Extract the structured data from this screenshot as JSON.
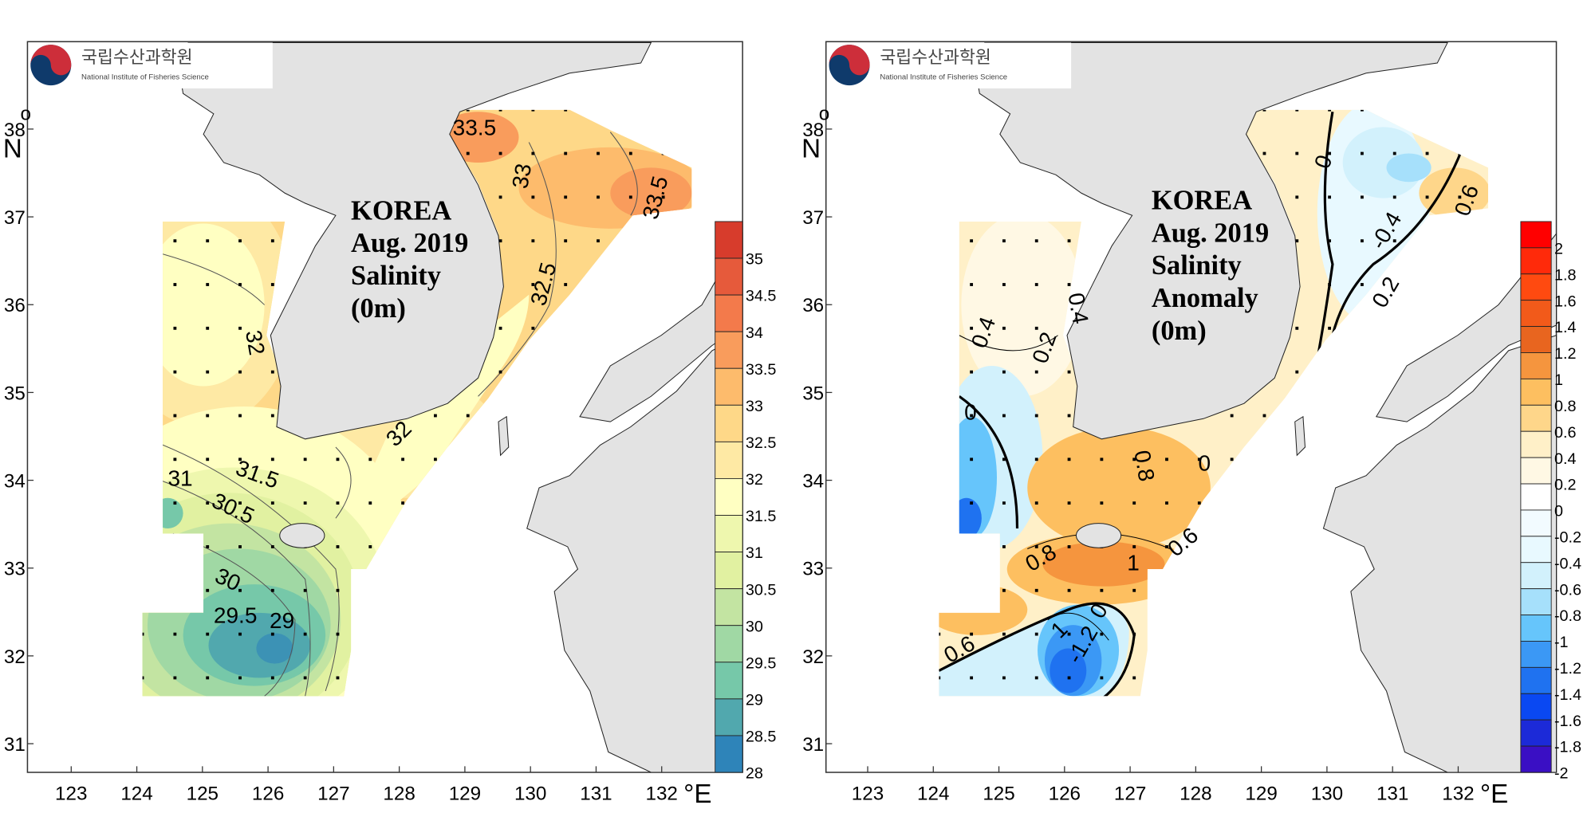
{
  "logo": {
    "korean": "국립수산과학원",
    "english": "National Institute of Fisheries Science",
    "colors": {
      "red": "#cd2e3a",
      "blue": "#0f3a6b"
    }
  },
  "axes": {
    "lat_ticks": [
      "38",
      "37",
      "36",
      "35",
      "34",
      "33",
      "32",
      "31"
    ],
    "lat_unit_symbol": "o",
    "lat_unit": "N",
    "lon_ticks": [
      "123",
      "124",
      "125",
      "126",
      "127",
      "128",
      "129",
      "130",
      "131",
      "132"
    ],
    "lon_unit": "°E"
  },
  "land_color": "#e3e3e3",
  "panels": [
    {
      "title_lines": [
        "KOREA",
        "Aug. 2019",
        "Salinity",
        "(0m)"
      ],
      "legend": {
        "labels": [
          "35",
          "34.5",
          "34",
          "33.5",
          "33",
          "32.5",
          "32",
          "31.5",
          "31",
          "30.5",
          "30",
          "29.5",
          "29",
          "28.5",
          "28"
        ],
        "colors": [
          "#d73c2c",
          "#e65a3b",
          "#f37a4b",
          "#f99c5c",
          "#fdbb6c",
          "#fed888",
          "#fee9a4",
          "#ffffc2",
          "#eef7ae",
          "#e1f1a1",
          "#c3e4a2",
          "#a0d8a4",
          "#76c8a9",
          "#51a8ae",
          "#2e84b9"
        ]
      },
      "contour_labels": [
        "33.5",
        "33",
        "33.5",
        "32.5",
        "32",
        "32",
        "31",
        "31.5",
        "30.5",
        "30",
        "29.5",
        "29"
      ]
    },
    {
      "title_lines": [
        "KOREA",
        "Aug. 2019",
        "Salinity",
        "Anomaly",
        "(0m)"
      ],
      "legend": {
        "labels": [
          "2",
          "1.8",
          "1.6",
          "1.4",
          "1.2",
          "1",
          "0.8",
          "0.6",
          "0.4",
          "0.2",
          "0",
          "-0.2",
          "-0.4",
          "-0.6",
          "-0.8",
          "-1",
          "-1.2",
          "-1.4",
          "-1.6",
          "-1.8",
          "-2"
        ],
        "colors": [
          "#ff0000",
          "#ff2a0a",
          "#ff4a10",
          "#f25a1a",
          "#e8651f",
          "#f5953e",
          "#fdbf60",
          "#fed68a",
          "#fff0c8",
          "#fff8e4",
          "#ffffff",
          "#f2fbff",
          "#e8f9ff",
          "#d2f1fc",
          "#a6e0fb",
          "#66c5fb",
          "#3b98f5",
          "#1f72f0",
          "#0a48f2",
          "#1c2ad8",
          "#3a0fc4"
        ]
      },
      "contour_labels": [
        "0",
        "-0.4",
        "0.6",
        "0.2",
        "0.4",
        "0.4",
        "0.2",
        "0",
        "0.8",
        "0",
        "1",
        "0.8",
        "0.6",
        "0",
        "0.6",
        "1",
        "-1.2"
      ]
    }
  ]
}
